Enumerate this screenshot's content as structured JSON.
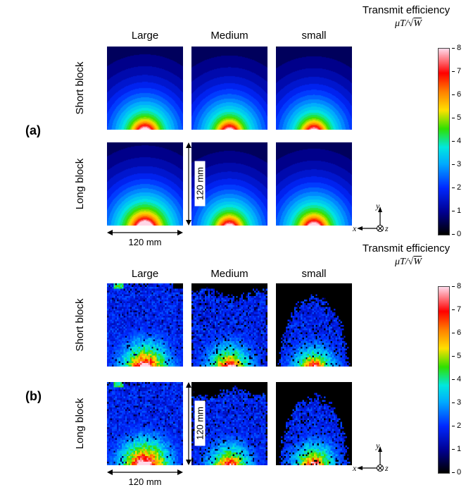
{
  "figure": {
    "panel_a_label": "(a)",
    "panel_b_label": "(b)"
  },
  "columns": [
    "Large",
    "Medium",
    "small"
  ],
  "rows": [
    "Short block",
    "Long block"
  ],
  "colorbar": {
    "title": "Transmit efficiency",
    "units_prefix": "μT/√",
    "units_radicand": "W",
    "min": 0,
    "max": 8,
    "ticks": [
      "0",
      "1",
      "2",
      "3",
      "4",
      "5",
      "6",
      "7",
      "8"
    ]
  },
  "dimensions": {
    "width_label": "120 mm",
    "height_label": "120 mm"
  },
  "axes": {
    "x": "x",
    "y": "y",
    "z": "z"
  },
  "colormap": {
    "name": "jet-extended (black to blue to cyan to green to yellow to orange to red to pale pink)",
    "stops": [
      [
        0.0,
        "#000000"
      ],
      [
        0.12,
        "#000090"
      ],
      [
        0.25,
        "#0028ff"
      ],
      [
        0.38,
        "#00aaff"
      ],
      [
        0.47,
        "#00e8e0"
      ],
      [
        0.57,
        "#30e000"
      ],
      [
        0.67,
        "#ffe000"
      ],
      [
        0.77,
        "#ff8000"
      ],
      [
        0.87,
        "#ff0000"
      ],
      [
        1.0,
        "#ffd8e8"
      ]
    ]
  },
  "chart_data": [
    {
      "type": "heatmap",
      "panel": "(a)",
      "data_kind": "simulation",
      "title": "Transmit efficiency",
      "units": "μT/√W",
      "description": "Simulated transmit-efficiency field maps over a 120 mm x 120 mm region for Large/Medium/small coils with Short and Long ferrite blocks. Field peaks (red/white hotspot, ~7-8 μT/√W) at the bottom-center coil location and decays radially to near 0 (black) at the top corners, producing concentric arc-shaped contour bands.",
      "rows": [
        "Short block",
        "Long block"
      ],
      "columns": [
        "Large",
        "Medium",
        "small"
      ],
      "region_mm": [
        120,
        120
      ],
      "colorbar_range_uT_per_sqrtW": [
        0,
        8
      ],
      "legend_position": "right colorbar",
      "cells": [
        {
          "row": "Short block",
          "column": "Large",
          "peak_uT_per_sqrtW": 7.6,
          "render": {
            "amp": 0.96,
            "seed": 11
          }
        },
        {
          "row": "Short block",
          "column": "Medium",
          "peak_uT_per_sqrtW": 7.4,
          "render": {
            "amp": 0.93,
            "seed": 12
          }
        },
        {
          "row": "Short block",
          "column": "small",
          "peak_uT_per_sqrtW": 7.2,
          "render": {
            "amp": 0.91,
            "seed": 13
          }
        },
        {
          "row": "Long block",
          "column": "Large",
          "peak_uT_per_sqrtW": 8.0,
          "render": {
            "amp": 1.1,
            "seed": 14
          }
        },
        {
          "row": "Long block",
          "column": "Medium",
          "peak_uT_per_sqrtW": 7.4,
          "render": {
            "amp": 0.94,
            "seed": 15
          }
        },
        {
          "row": "Long block",
          "column": "small",
          "peak_uT_per_sqrtW": 7.8,
          "render": {
            "amp": 1.0,
            "seed": 16
          }
        }
      ]
    },
    {
      "type": "heatmap",
      "panel": "(b)",
      "data_kind": "measurement",
      "title": "Transmit efficiency",
      "units": "μT/√W",
      "description": "Measured transmit-efficiency maps (noisy, pixelated) for the same coil/block combinations. Large-coil maps fill the whole square with speckled blue background and a red/yellow hotspot at bottom-center; Medium-coil maps are truncated at the top with ragged black edges; small-coil maps show a dome-shaped measured region on a black background.",
      "rows": [
        "Short block",
        "Long block"
      ],
      "columns": [
        "Large",
        "Medium",
        "small"
      ],
      "region_mm": [
        120,
        120
      ],
      "colorbar_range_uT_per_sqrtW": [
        0,
        8
      ],
      "legend_position": "right colorbar",
      "cells": [
        {
          "row": "Short block",
          "column": "Large",
          "peak_uT_per_sqrtW": 7.8,
          "render": {
            "amp": 1.18,
            "seed": 21,
            "shape": "square",
            "artifact": true,
            "notch": true
          }
        },
        {
          "row": "Short block",
          "column": "Medium",
          "peak_uT_per_sqrtW": 7.0,
          "render": {
            "amp": 1.02,
            "seed": 22,
            "shape": "truncated"
          }
        },
        {
          "row": "Short block",
          "column": "small",
          "peak_uT_per_sqrtW": 6.6,
          "render": {
            "amp": 0.92,
            "seed": 23,
            "shape": "dome"
          }
        },
        {
          "row": "Long block",
          "column": "Large",
          "peak_uT_per_sqrtW": 8.0,
          "render": {
            "amp": 1.3,
            "seed": 24,
            "shape": "square",
            "artifact": true
          }
        },
        {
          "row": "Long block",
          "column": "Medium",
          "peak_uT_per_sqrtW": 6.8,
          "render": {
            "amp": 0.98,
            "seed": 25,
            "shape": "truncated"
          }
        },
        {
          "row": "Long block",
          "column": "small",
          "peak_uT_per_sqrtW": 7.0,
          "render": {
            "amp": 1.0,
            "seed": 26,
            "shape": "dome"
          }
        }
      ]
    }
  ]
}
